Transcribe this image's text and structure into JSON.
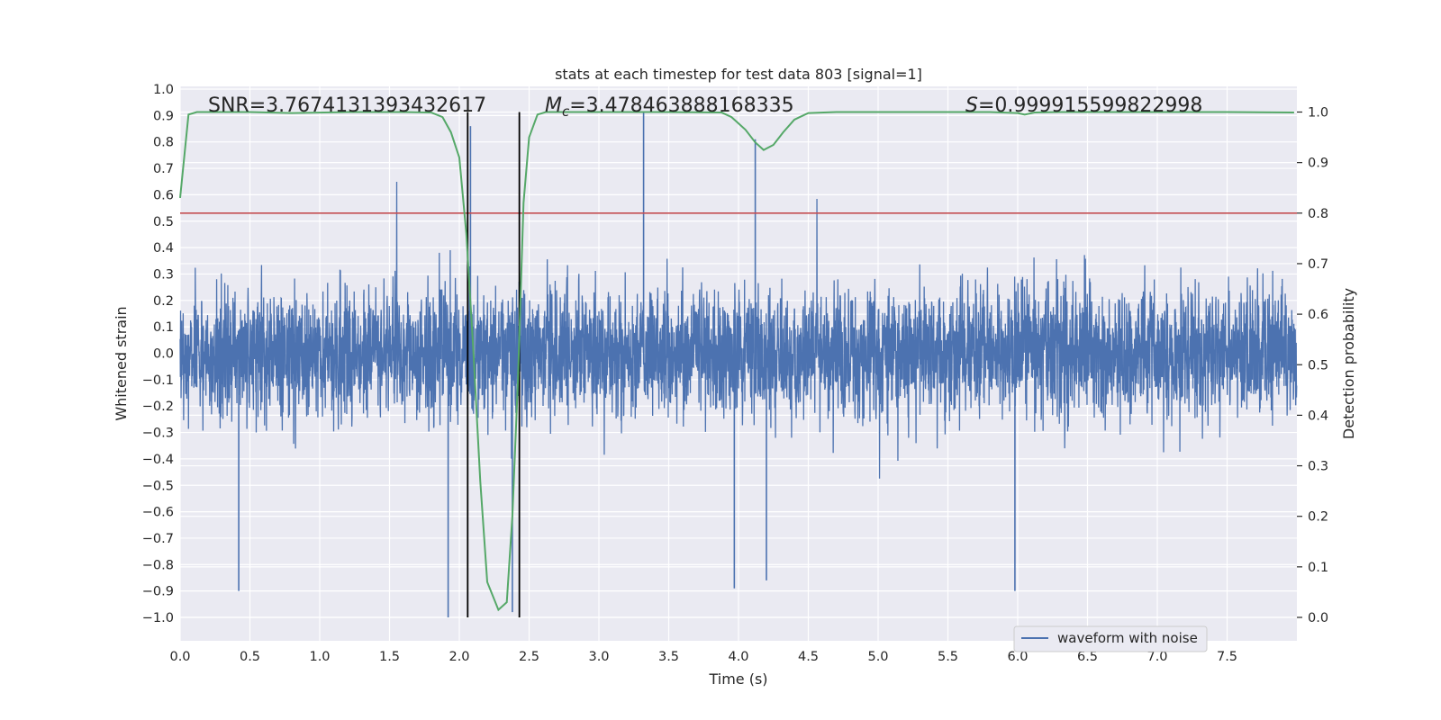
{
  "chart_data": {
    "type": "line",
    "title": "stats at each timestep for test data 803 [signal=1]",
    "xlabel": "Time (s)",
    "ylabel_left": "Whitened strain",
    "ylabel_right": "Detection probability",
    "xlim": [
      0.0,
      8.0
    ],
    "ylim_left": [
      -1.0,
      1.0
    ],
    "ylim_right": [
      0.0,
      1.0
    ],
    "x_ticks": [
      0.0,
      0.5,
      1.0,
      1.5,
      2.0,
      2.5,
      3.0,
      3.5,
      4.0,
      4.5,
      5.0,
      5.5,
      6.0,
      6.5,
      7.0,
      7.5
    ],
    "x_tick_labels": [
      "0.0",
      "0.5",
      "1.0",
      "1.5",
      "2.0",
      "2.5",
      "3.0",
      "3.5",
      "4.0",
      "4.5",
      "5.0",
      "5.5",
      "6.0",
      "6.5",
      "7.0",
      "7.5"
    ],
    "y_left_ticks": [
      1.0,
      0.9,
      0.8,
      0.7,
      0.6,
      0.5,
      0.4,
      0.3,
      0.2,
      0.1,
      0.0,
      -0.1,
      -0.2,
      -0.3,
      -0.4,
      -0.5,
      -0.6,
      -0.7,
      -0.8,
      -0.9,
      -1.0
    ],
    "y_left_tick_labels": [
      "1.0",
      "0.9",
      "0.8",
      "0.7",
      "0.6",
      "0.5",
      "0.4",
      "0.3",
      "0.2",
      "0.1",
      "0.0",
      "−0.1",
      "−0.2",
      "−0.3",
      "−0.4",
      "−0.5",
      "−0.6",
      "−0.7",
      "−0.8",
      "−0.9",
      "−1.0"
    ],
    "y_right_ticks": [
      0.0,
      0.1,
      0.2,
      0.3,
      0.4,
      0.5,
      0.6,
      0.7,
      0.8,
      0.9,
      1.0
    ],
    "y_right_tick_labels": [
      "0.0",
      "0.1",
      "0.2",
      "0.3",
      "0.4",
      "0.5",
      "0.6",
      "0.7",
      "0.8",
      "0.9",
      "1.0"
    ],
    "annotations": [
      {
        "name": "snr-annotation",
        "text": "SNR=3.7674131393432617"
      },
      {
        "name": "chirp-mass-annotation",
        "prefix": "M",
        "subscript": "c",
        "text": "=3.478463888168335"
      },
      {
        "name": "s-annotation",
        "prefix": "S",
        "text": "=0.999915599822998"
      }
    ],
    "legend": {
      "position": "lower-right",
      "entries": [
        {
          "label": "waveform with noise",
          "color": "#4c72b0"
        }
      ]
    },
    "series": [
      {
        "name": "waveform with noise",
        "axis": "left",
        "color": "#4c72b0",
        "kind": "noise",
        "envelope_typical": 0.45,
        "peak_max": 0.93,
        "peak_min": -1.0,
        "notable_peaks": [
          {
            "x": 3.32,
            "y": 0.91
          },
          {
            "x": 2.08,
            "y": 0.86
          },
          {
            "x": 4.12,
            "y": 0.81
          },
          {
            "x": 1.92,
            "y": -1.0
          },
          {
            "x": 2.38,
            "y": -0.98
          },
          {
            "x": 0.42,
            "y": -0.9
          },
          {
            "x": 5.98,
            "y": -0.9
          },
          {
            "x": 3.97,
            "y": -0.89
          },
          {
            "x": 4.2,
            "y": -0.86
          }
        ]
      },
      {
        "name": "detection probability",
        "axis": "right",
        "color": "#55a868",
        "x": [
          0.0,
          0.06,
          0.12,
          0.5,
          0.8,
          1.2,
          1.6,
          1.8,
          1.88,
          1.94,
          2.0,
          2.05,
          2.1,
          2.15,
          2.2,
          2.28,
          2.34,
          2.38,
          2.42,
          2.46,
          2.5,
          2.56,
          2.62,
          3.0,
          3.5,
          3.88,
          3.95,
          4.05,
          4.12,
          4.18,
          4.25,
          4.32,
          4.4,
          4.5,
          4.7,
          5.0,
          5.5,
          5.8,
          6.0,
          6.05,
          6.12,
          6.3,
          7.0,
          7.5,
          7.98
        ],
        "y": [
          0.83,
          0.995,
          1.0,
          1.0,
          0.998,
          1.0,
          1.0,
          0.999,
          0.99,
          0.96,
          0.91,
          0.76,
          0.53,
          0.27,
          0.07,
          0.015,
          0.03,
          0.2,
          0.47,
          0.82,
          0.95,
          0.995,
          1.0,
          1.0,
          1.0,
          0.999,
          0.99,
          0.965,
          0.94,
          0.925,
          0.935,
          0.96,
          0.985,
          0.998,
          1.0,
          1.0,
          1.0,
          1.0,
          0.998,
          0.995,
          0.999,
          1.0,
          1.0,
          1.0,
          0.999
        ]
      }
    ],
    "threshold_line": {
      "axis": "right",
      "value": 0.8,
      "color": "#c44e52"
    },
    "vertical_lines": [
      {
        "x": 2.06,
        "color": "#000000"
      },
      {
        "x": 2.43,
        "color": "#000000"
      }
    ]
  }
}
